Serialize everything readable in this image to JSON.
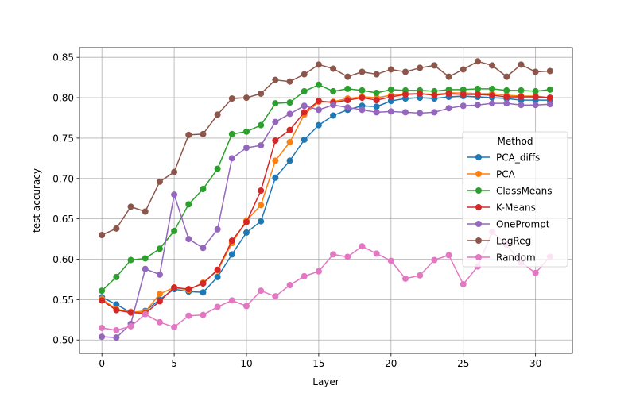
{
  "chart_data": {
    "type": "line",
    "xlabel": "Layer",
    "ylabel": "test accuracy",
    "xlim": [
      -1.55,
      32.55
    ],
    "ylim": [
      0.4835,
      0.862
    ],
    "xticks": [
      0,
      5,
      10,
      15,
      20,
      25,
      30
    ],
    "yticks": [
      0.5,
      0.55,
      0.6,
      0.65,
      0.7,
      0.75,
      0.8,
      0.85
    ],
    "grid": true,
    "legend": {
      "title": "Method",
      "position": "center-right"
    },
    "x": [
      0,
      1,
      2,
      3,
      4,
      5,
      6,
      7,
      8,
      9,
      10,
      11,
      12,
      13,
      14,
      15,
      16,
      17,
      18,
      19,
      20,
      21,
      22,
      23,
      24,
      25,
      26,
      27,
      28,
      29,
      30,
      31
    ],
    "series": [
      {
        "name": "PCA_diffs",
        "color": "#1f77b4",
        "values": [
          0.553,
          0.544,
          0.534,
          0.536,
          0.55,
          0.563,
          0.56,
          0.559,
          0.578,
          0.606,
          0.633,
          0.647,
          0.701,
          0.722,
          0.748,
          0.766,
          0.778,
          0.785,
          0.79,
          0.789,
          0.796,
          0.799,
          0.8,
          0.799,
          0.801,
          0.802,
          0.801,
          0.8,
          0.799,
          0.797,
          0.797,
          0.797
        ]
      },
      {
        "name": "PCA",
        "color": "#ff7f0e",
        "values": [
          0.551,
          0.538,
          0.535,
          0.535,
          0.557,
          0.565,
          0.562,
          0.571,
          0.586,
          0.62,
          0.648,
          0.667,
          0.722,
          0.745,
          0.779,
          0.795,
          0.795,
          0.799,
          0.801,
          0.8,
          0.803,
          0.805,
          0.805,
          0.804,
          0.806,
          0.806,
          0.805,
          0.805,
          0.803,
          0.802,
          0.802,
          0.8
        ]
      },
      {
        "name": "ClassMeans",
        "color": "#2ca02c",
        "values": [
          0.561,
          0.578,
          0.599,
          0.601,
          0.613,
          0.635,
          0.668,
          0.687,
          0.712,
          0.755,
          0.758,
          0.766,
          0.793,
          0.794,
          0.808,
          0.816,
          0.808,
          0.811,
          0.809,
          0.806,
          0.81,
          0.809,
          0.809,
          0.808,
          0.81,
          0.81,
          0.811,
          0.811,
          0.809,
          0.809,
          0.808,
          0.81
        ]
      },
      {
        "name": "K-Means",
        "color": "#d62728",
        "values": [
          0.549,
          0.537,
          0.534,
          0.533,
          0.548,
          0.565,
          0.563,
          0.57,
          0.587,
          0.623,
          0.646,
          0.685,
          0.747,
          0.76,
          0.782,
          0.796,
          0.794,
          0.797,
          0.8,
          0.797,
          0.801,
          0.804,
          0.805,
          0.803,
          0.805,
          0.804,
          0.804,
          0.803,
          0.801,
          0.801,
          0.801,
          0.8
        ]
      },
      {
        "name": "OnePrompt",
        "color": "#9467bd",
        "values": [
          0.504,
          0.503,
          0.52,
          0.588,
          0.581,
          0.68,
          0.625,
          0.614,
          0.637,
          0.725,
          0.738,
          0.741,
          0.77,
          0.78,
          0.79,
          0.785,
          0.791,
          0.788,
          0.785,
          0.782,
          0.783,
          0.782,
          0.781,
          0.782,
          0.787,
          0.79,
          0.791,
          0.793,
          0.793,
          0.791,
          0.791,
          0.792
        ]
      },
      {
        "name": "LogReg",
        "color": "#8c564b",
        "values": [
          0.63,
          0.638,
          0.665,
          0.659,
          0.696,
          0.708,
          0.754,
          0.755,
          0.779,
          0.799,
          0.8,
          0.805,
          0.822,
          0.82,
          0.829,
          0.841,
          0.836,
          0.826,
          0.832,
          0.829,
          0.835,
          0.832,
          0.837,
          0.84,
          0.826,
          0.835,
          0.845,
          0.84,
          0.826,
          0.841,
          0.832,
          0.833
        ]
      },
      {
        "name": "Random",
        "color": "#e377c2",
        "values": [
          0.515,
          0.512,
          0.517,
          0.532,
          0.522,
          0.516,
          0.53,
          0.531,
          0.541,
          0.549,
          0.542,
          0.561,
          0.554,
          0.568,
          0.579,
          0.585,
          0.606,
          0.603,
          0.616,
          0.607,
          0.598,
          0.576,
          0.58,
          0.599,
          0.605,
          0.569,
          0.591,
          0.634,
          0.618,
          0.596,
          0.583,
          0.603
        ]
      }
    ]
  }
}
